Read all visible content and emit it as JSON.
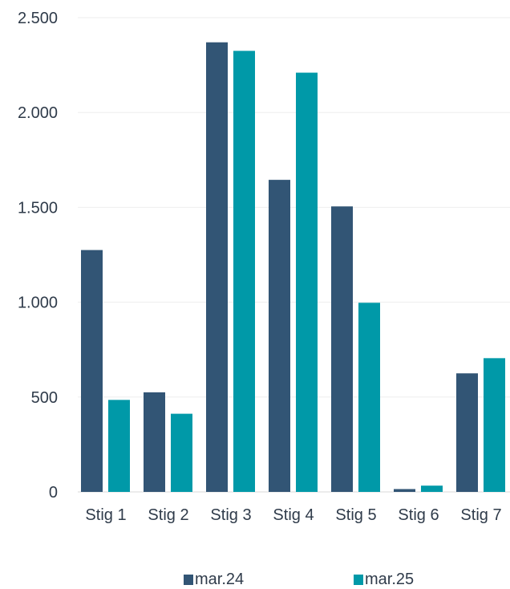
{
  "chart_data": {
    "type": "bar",
    "title": "",
    "xlabel": "",
    "ylabel": "",
    "categories": [
      "Stig 1",
      "Stig 2",
      "Stig 3",
      "Stig 4",
      "Stig 5",
      "Stig 6",
      "Stig 7"
    ],
    "series": [
      {
        "name": "mar.24",
        "color": "#325575",
        "values": [
          1275,
          525,
          2370,
          1645,
          1505,
          15,
          625
        ]
      },
      {
        "name": "mar.25",
        "color": "#0099a8",
        "values": [
          485,
          412,
          2325,
          2210,
          997,
          33,
          705
        ]
      }
    ],
    "ylim": [
      0,
      2500
    ],
    "y_ticks": [
      0,
      500,
      1000,
      1500,
      2000,
      2500
    ],
    "y_tick_labels": [
      "0",
      "500",
      "1.000",
      "1.500",
      "2.000",
      "2.500"
    ],
    "grid": true,
    "legend_position": "bottom"
  }
}
